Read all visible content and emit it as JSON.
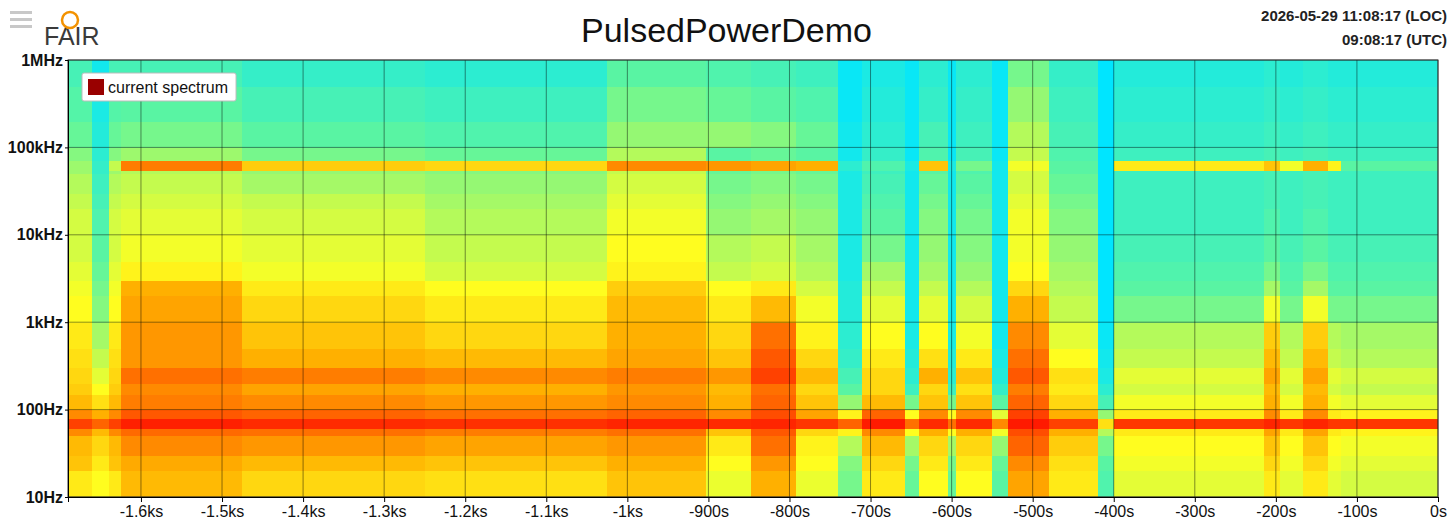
{
  "chart_data": {
    "type": "heatmap",
    "title": "PulsedPowerDemo",
    "annotations": [
      "FAIR",
      "2026-05-29 11:08:17 (LOC)",
      "09:08:17 (UTC)"
    ],
    "log": "y",
    "grid": true,
    "legend": "upper left",
    "xlim": [
      -1690,
      0
    ],
    "ylim": [
      10,
      1000000
    ],
    "xticks": [
      {
        "value": -1600,
        "label": "-1.6ks"
      },
      {
        "value": -1500,
        "label": "-1.5ks"
      },
      {
        "value": -1400,
        "label": "-1.4ks"
      },
      {
        "value": -1300,
        "label": "-1.3ks"
      },
      {
        "value": -1200,
        "label": "-1.2ks"
      },
      {
        "value": -1100,
        "label": "-1.1ks"
      },
      {
        "value": -1000,
        "label": "-1ks"
      },
      {
        "value": -900,
        "label": "-900s"
      },
      {
        "value": -800,
        "label": "-800s"
      },
      {
        "value": -700,
        "label": "-700s"
      },
      {
        "value": -600,
        "label": "-600s"
      },
      {
        "value": -500,
        "label": "-500s"
      },
      {
        "value": -400,
        "label": "-400s"
      },
      {
        "value": -300,
        "label": "-300s"
      },
      {
        "value": -200,
        "label": "-200s"
      },
      {
        "value": -100,
        "label": "-100s"
      },
      {
        "value": 0,
        "label": "0s"
      }
    ],
    "yticks": [
      {
        "value": 10,
        "label": "10Hz"
      },
      {
        "value": 100,
        "label": "100Hz"
      },
      {
        "value": 1000,
        "label": "1kHz"
      },
      {
        "value": 10000,
        "label": "10kHz"
      },
      {
        "value": 100000,
        "label": "100kHz"
      },
      {
        "value": 1000000,
        "label": "1MHz"
      }
    ],
    "x_bins": [
      -1690,
      -1660,
      -1640,
      -1625,
      -1475,
      -1250,
      -1025,
      -903,
      -848,
      -792,
      -740,
      -710,
      -657,
      -640,
      -605,
      -595,
      -550,
      -530,
      -480,
      -420,
      -400,
      -215,
      -195,
      -167,
      -136,
      -120,
      0
    ],
    "y_bins": [
      10,
      20,
      30,
      50,
      60,
      80,
      100,
      150,
      200,
      300,
      500,
      1000,
      2000,
      3000,
      5000,
      10000,
      20000,
      30000,
      50000,
      55000,
      70000,
      100000,
      200000,
      500000,
      1000000
    ],
    "series": [
      {
        "name": "current spectrum",
        "color": "#990000",
        "cells": [
          [
            62,
            70,
            72,
            80,
            92,
            80,
            72,
            68,
            66,
            64,
            62,
            58,
            56,
            54,
            52,
            52,
            50,
            48,
            45,
            45,
            42,
            38,
            35,
            32
          ],
          [
            58,
            62,
            66,
            72,
            86,
            74,
            64,
            58,
            54,
            50,
            46,
            42,
            40,
            38,
            36,
            34,
            32,
            30,
            28,
            28,
            26,
            24,
            22,
            20
          ],
          [
            62,
            70,
            72,
            80,
            92,
            80,
            72,
            68,
            66,
            64,
            62,
            58,
            56,
            54,
            52,
            52,
            50,
            48,
            45,
            50,
            42,
            38,
            35,
            32
          ],
          [
            72,
            75,
            80,
            85,
            98,
            88,
            82,
            80,
            84,
            78,
            78,
            76,
            74,
            60,
            56,
            54,
            52,
            50,
            48,
            82,
            45,
            40,
            36,
            32
          ],
          [
            66,
            72,
            78,
            84,
            96,
            86,
            80,
            76,
            82,
            74,
            70,
            66,
            62,
            56,
            54,
            52,
            50,
            46,
            44,
            68,
            40,
            36,
            32,
            28
          ],
          [
            64,
            70,
            76,
            82,
            95,
            84,
            78,
            74,
            80,
            72,
            66,
            62,
            58,
            52,
            50,
            48,
            46,
            44,
            42,
            66,
            38,
            34,
            30,
            26
          ],
          [
            70,
            74,
            78,
            84,
            97,
            86,
            80,
            78,
            82,
            76,
            74,
            72,
            68,
            60,
            58,
            56,
            54,
            52,
            50,
            80,
            48,
            44,
            40,
            36
          ],
          [
            55,
            58,
            62,
            70,
            96,
            80,
            74,
            72,
            78,
            70,
            66,
            62,
            58,
            50,
            48,
            44,
            42,
            40,
            38,
            78,
            36,
            44,
            38,
            34
          ],
          [
            74,
            78,
            84,
            88,
            97,
            90,
            86,
            84,
            92,
            88,
            84,
            72,
            62,
            52,
            50,
            46,
            44,
            42,
            40,
            76,
            38,
            42,
            36,
            32
          ],
          [
            55,
            58,
            60,
            66,
            94,
            76,
            70,
            66,
            72,
            66,
            60,
            56,
            52,
            48,
            46,
            44,
            42,
            40,
            38,
            74,
            36,
            38,
            34,
            30
          ],
          [
            40,
            42,
            48,
            60,
            86,
            60,
            44,
            36,
            32,
            28,
            26,
            24,
            24,
            22,
            22,
            22,
            22,
            22,
            22,
            26,
            20,
            20,
            18,
            18
          ],
          [
            62,
            66,
            72,
            80,
            99,
            86,
            72,
            66,
            66,
            62,
            58,
            54,
            50,
            46,
            40,
            36,
            34,
            32,
            30,
            34,
            28,
            26,
            24,
            22
          ],
          [
            38,
            40,
            46,
            58,
            84,
            58,
            40,
            30,
            26,
            24,
            22,
            20,
            20,
            20,
            20,
            20,
            20,
            20,
            20,
            22,
            18,
            18,
            18,
            18
          ],
          [
            58,
            62,
            66,
            74,
            96,
            80,
            70,
            66,
            74,
            64,
            58,
            54,
            50,
            46,
            44,
            42,
            40,
            38,
            36,
            70,
            34,
            32,
            28,
            26
          ],
          [
            38,
            40,
            46,
            58,
            84,
            58,
            40,
            30,
            26,
            24,
            22,
            20,
            20,
            20,
            20,
            20,
            20,
            20,
            20,
            22,
            18,
            18,
            18,
            18
          ],
          [
            58,
            62,
            66,
            74,
            96,
            80,
            70,
            64,
            70,
            62,
            56,
            52,
            48,
            44,
            42,
            40,
            38,
            36,
            34,
            40,
            32,
            30,
            28,
            26
          ],
          [
            36,
            38,
            44,
            56,
            80,
            54,
            36,
            28,
            24,
            22,
            20,
            20,
            20,
            20,
            20,
            20,
            20,
            20,
            20,
            20,
            18,
            18,
            18,
            18
          ],
          [
            76,
            80,
            86,
            90,
            99,
            92,
            86,
            82,
            88,
            84,
            80,
            74,
            66,
            58,
            56,
            56,
            54,
            52,
            52,
            56,
            50,
            48,
            44,
            40
          ],
          [
            62,
            64,
            68,
            74,
            92,
            74,
            66,
            62,
            64,
            58,
            54,
            50,
            48,
            46,
            44,
            42,
            40,
            38,
            36,
            36,
            34,
            32,
            30,
            28
          ],
          [
            34,
            36,
            40,
            48,
            64,
            44,
            32,
            26,
            22,
            20,
            18,
            16,
            16,
            16,
            16,
            16,
            16,
            16,
            16,
            16,
            16,
            16,
            16,
            16
          ],
          [
            54,
            56,
            58,
            62,
            94,
            62,
            56,
            52,
            54,
            50,
            48,
            40,
            36,
            34,
            32,
            30,
            30,
            30,
            30,
            62,
            30,
            28,
            26,
            24
          ],
          [
            62,
            66,
            70,
            76,
            97,
            80,
            74,
            72,
            76,
            72,
            68,
            56,
            46,
            40,
            36,
            34,
            32,
            32,
            32,
            70,
            32,
            30,
            28,
            26
          ],
          [
            54,
            56,
            58,
            62,
            94,
            62,
            56,
            52,
            54,
            50,
            48,
            40,
            36,
            34,
            32,
            30,
            30,
            30,
            30,
            56,
            30,
            28,
            26,
            24
          ],
          [
            62,
            66,
            70,
            76,
            97,
            80,
            74,
            72,
            76,
            72,
            68,
            56,
            46,
            40,
            36,
            34,
            32,
            32,
            32,
            74,
            32,
            30,
            28,
            26
          ],
          [
            54,
            56,
            58,
            62,
            94,
            62,
            56,
            52,
            54,
            50,
            48,
            40,
            36,
            34,
            32,
            30,
            30,
            30,
            30,
            60,
            30,
            28,
            26,
            24
          ],
          [
            52,
            54,
            56,
            60,
            94,
            60,
            54,
            50,
            52,
            48,
            46,
            40,
            36,
            34,
            32,
            30,
            30,
            30,
            30,
            36,
            30,
            28,
            26,
            24
          ]
        ]
      }
    ]
  }
}
